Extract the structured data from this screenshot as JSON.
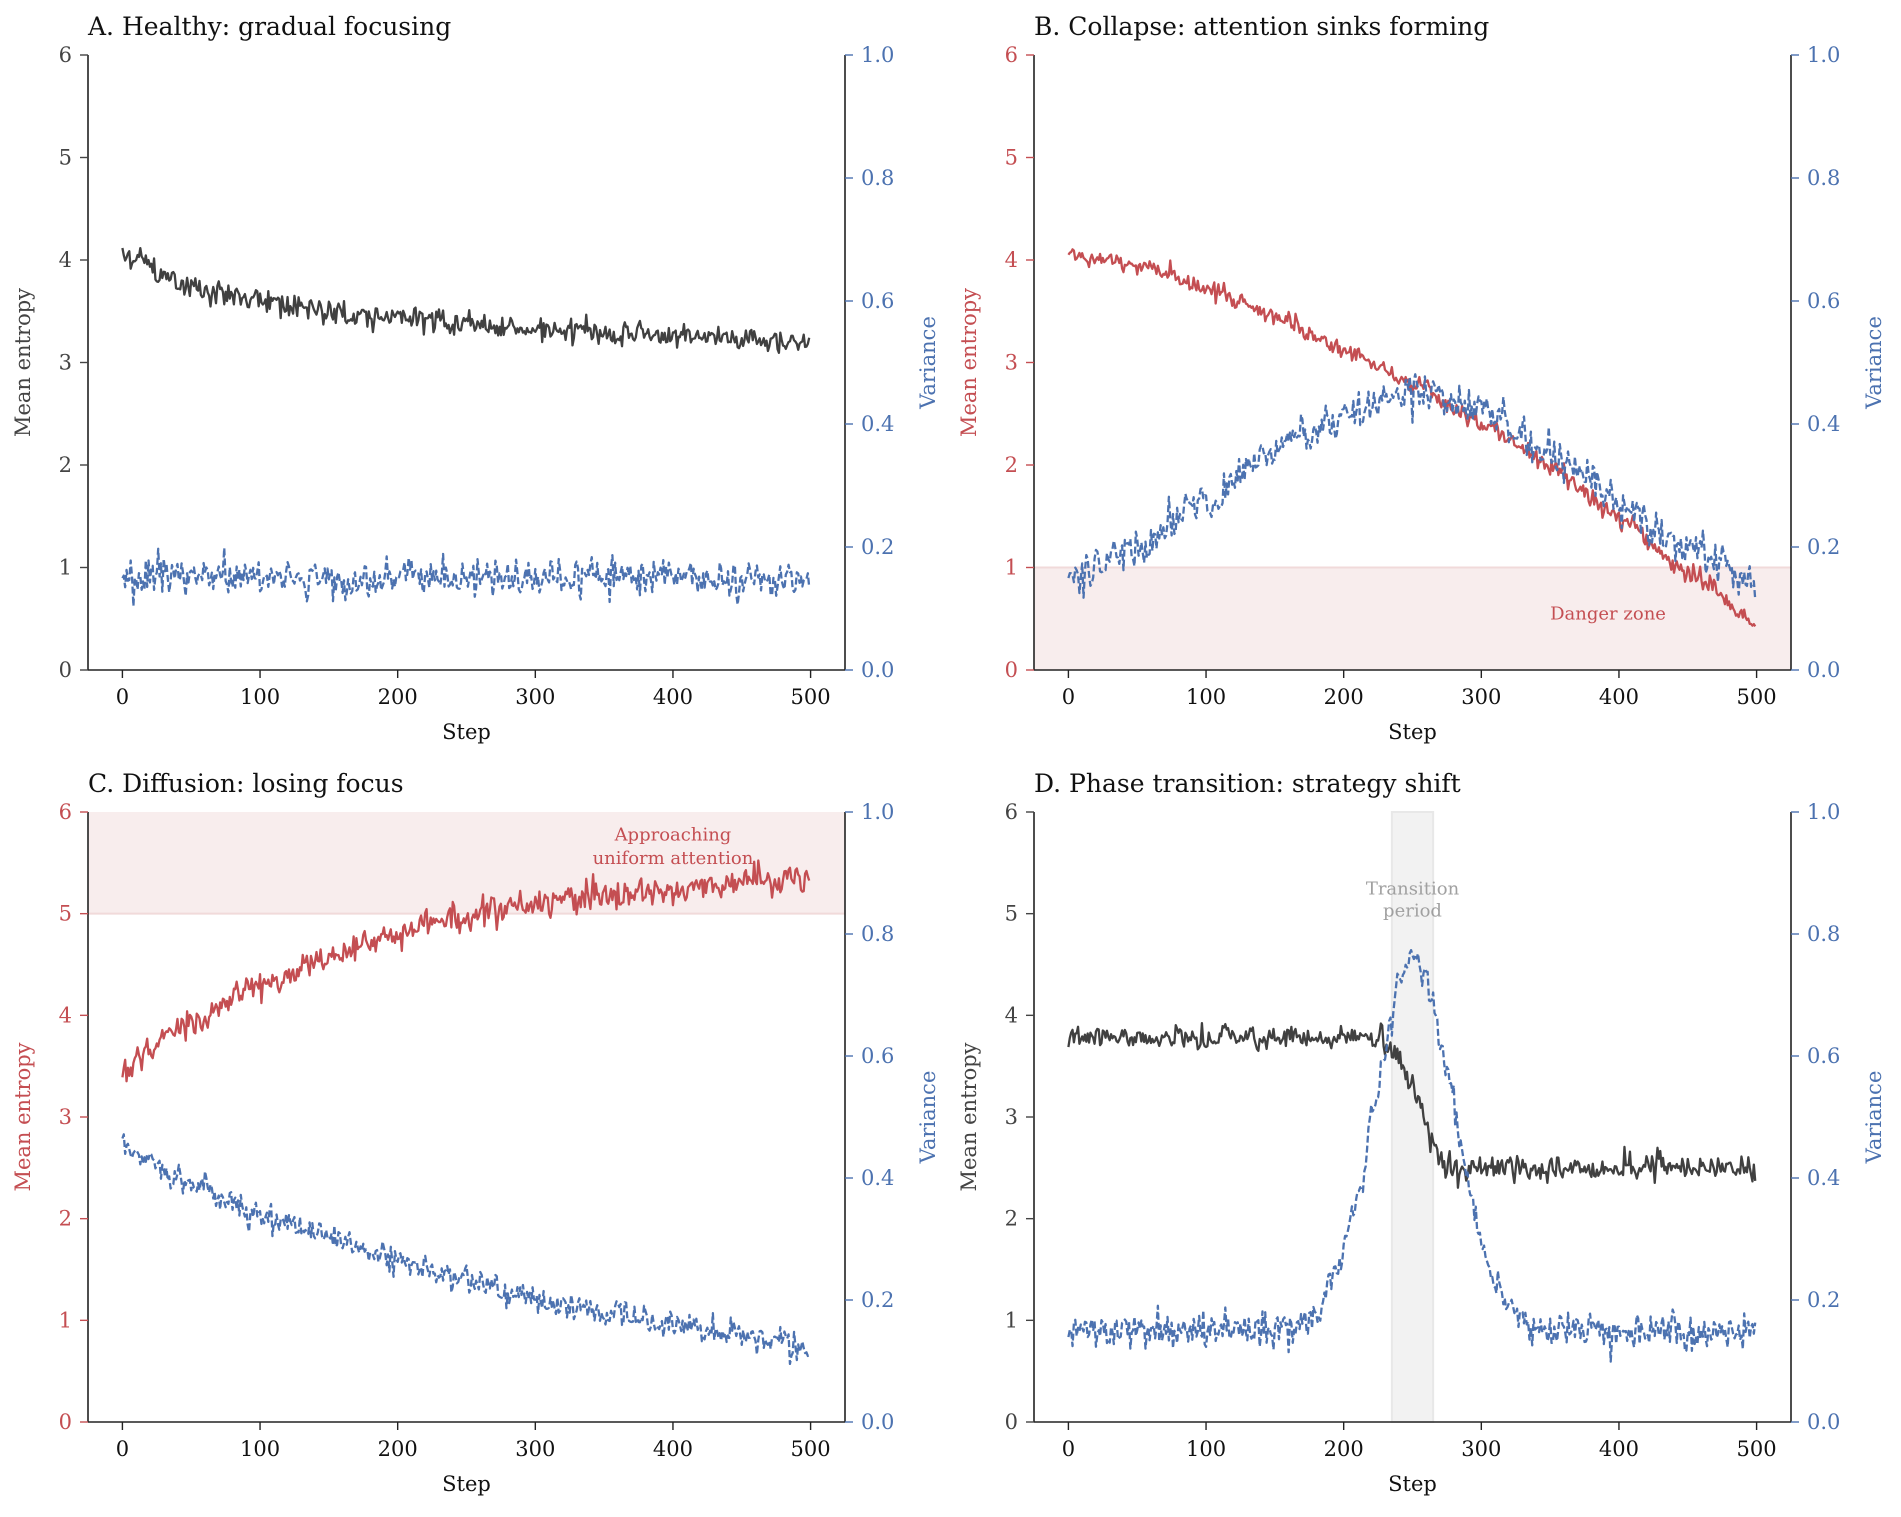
{
  "colors": {
    "red": "#c44e52",
    "blue": "#4c72b0",
    "dark": "#404040",
    "axis": "#222222",
    "danger_fill": "#f8eded",
    "transition_fill": "#f2f2f2",
    "transition_text": "#a0a0a0"
  },
  "chart_data": [
    {
      "id": "A",
      "type": "line",
      "title": "A. Healthy: gradual focusing",
      "xlabel": "Step",
      "ylabel_left": "Mean entropy",
      "ylabel_right": "Variance",
      "left_axis_color": "dark",
      "xlim": [
        -25,
        525
      ],
      "ylim_left": [
        0,
        6
      ],
      "ylim_right": [
        0.0,
        1.0
      ],
      "xticks": [
        "0",
        "100",
        "200",
        "300",
        "400",
        "500"
      ],
      "xtick_values": [
        0,
        100,
        200,
        300,
        400,
        500
      ],
      "yticks_left": [
        "0",
        "1",
        "2",
        "3",
        "4",
        "5",
        "6"
      ],
      "yticks_left_values": [
        0,
        1,
        2,
        3,
        4,
        5,
        6
      ],
      "yticks_right": [
        "0.0",
        "0.2",
        "0.4",
        "0.6",
        "0.8",
        "1.0"
      ],
      "yticks_right_values": [
        0,
        0.2,
        0.4,
        0.6,
        0.8,
        1.0
      ],
      "series": [
        {
          "name": "Mean entropy",
          "axis": "left",
          "color": "dark",
          "style": "solid",
          "x_range": [
            0,
            499
          ],
          "trend": [
            [
              0,
              4.05
            ],
            [
              50,
              3.75
            ],
            [
              100,
              3.6
            ],
            [
              200,
              3.42
            ],
            [
              300,
              3.33
            ],
            [
              400,
              3.27
            ],
            [
              499,
              3.2
            ]
          ],
          "noise": 0.07,
          "seed": 11
        },
        {
          "name": "Variance",
          "axis": "right",
          "color": "blue",
          "style": "dashed",
          "x_range": [
            0,
            499
          ],
          "trend": [
            [
              0,
              0.15
            ],
            [
              499,
              0.15
            ]
          ],
          "noise": 0.017,
          "seed": 12
        }
      ],
      "bands": [],
      "annotations": []
    },
    {
      "id": "B",
      "type": "line",
      "title": "B. Collapse: attention sinks forming",
      "xlabel": "Step",
      "ylabel_left": "Mean entropy",
      "ylabel_right": "Variance",
      "left_axis_color": "red",
      "xlim": [
        -25,
        525
      ],
      "ylim_left": [
        0,
        6
      ],
      "ylim_right": [
        0.0,
        1.0
      ],
      "xticks": [
        "0",
        "100",
        "200",
        "300",
        "400",
        "500"
      ],
      "xtick_values": [
        0,
        100,
        200,
        300,
        400,
        500
      ],
      "yticks_left": [
        "0",
        "1",
        "2",
        "3",
        "4",
        "5",
        "6"
      ],
      "yticks_left_values": [
        0,
        1,
        2,
        3,
        4,
        5,
        6
      ],
      "yticks_right": [
        "0.0",
        "0.2",
        "0.4",
        "0.6",
        "0.8",
        "1.0"
      ],
      "yticks_right_values": [
        0,
        0.2,
        0.4,
        0.6,
        0.8,
        1.0
      ],
      "series": [
        {
          "name": "Mean entropy",
          "axis": "left",
          "color": "red",
          "style": "solid",
          "x_range": [
            0,
            499
          ],
          "trend": [
            [
              0,
              4.05
            ],
            [
              50,
              3.95
            ],
            [
              100,
              3.72
            ],
            [
              150,
              3.45
            ],
            [
              200,
              3.12
            ],
            [
              250,
              2.8
            ],
            [
              300,
              2.4
            ],
            [
              350,
              2.0
            ],
            [
              400,
              1.5
            ],
            [
              450,
              0.95
            ],
            [
              499,
              0.45
            ]
          ],
          "noise": 0.05,
          "seed": 21
        },
        {
          "name": "Variance",
          "axis": "right",
          "color": "blue",
          "style": "dashed",
          "x_range": [
            0,
            499
          ],
          "trend": [
            [
              0,
              0.15
            ],
            [
              50,
              0.2
            ],
            [
              100,
              0.27
            ],
            [
              150,
              0.36
            ],
            [
              200,
              0.42
            ],
            [
              250,
              0.45
            ],
            [
              300,
              0.42
            ],
            [
              350,
              0.35
            ],
            [
              400,
              0.27
            ],
            [
              450,
              0.2
            ],
            [
              499,
              0.15
            ]
          ],
          "noise": 0.018,
          "seed": 22
        }
      ],
      "bands": [
        {
          "orientation": "horizontal",
          "axis": "left",
          "from": 0,
          "to": 1,
          "color": "danger_fill"
        }
      ],
      "annotations": [
        {
          "text": "Danger zone",
          "x": 350,
          "y": 0.55,
          "anchor": "start",
          "color": "red"
        }
      ]
    },
    {
      "id": "C",
      "type": "line",
      "title": "C. Diffusion: losing focus",
      "xlabel": "Step",
      "ylabel_left": "Mean entropy",
      "ylabel_right": "Variance",
      "left_axis_color": "red",
      "xlim": [
        -25,
        525
      ],
      "ylim_left": [
        0,
        6
      ],
      "ylim_right": [
        0.0,
        1.0
      ],
      "xticks": [
        "0",
        "100",
        "200",
        "300",
        "400",
        "500"
      ],
      "xtick_values": [
        0,
        100,
        200,
        300,
        400,
        500
      ],
      "yticks_left": [
        "0",
        "1",
        "2",
        "3",
        "4",
        "5",
        "6"
      ],
      "yticks_left_values": [
        0,
        1,
        2,
        3,
        4,
        5,
        6
      ],
      "yticks_right": [
        "0.0",
        "0.2",
        "0.4",
        "0.6",
        "0.8",
        "1.0"
      ],
      "yticks_right_values": [
        0,
        0.2,
        0.4,
        0.6,
        0.8,
        1.0
      ],
      "series": [
        {
          "name": "Mean entropy",
          "axis": "left",
          "color": "red",
          "style": "solid",
          "x_range": [
            0,
            499
          ],
          "trend": [
            [
              0,
              3.45
            ],
            [
              50,
              3.95
            ],
            [
              100,
              4.3
            ],
            [
              150,
              4.58
            ],
            [
              200,
              4.8
            ],
            [
              250,
              4.97
            ],
            [
              300,
              5.1
            ],
            [
              350,
              5.18
            ],
            [
              400,
              5.25
            ],
            [
              450,
              5.3
            ],
            [
              499,
              5.35
            ]
          ],
          "noise": 0.08,
          "seed": 31
        },
        {
          "name": "Variance",
          "axis": "right",
          "color": "blue",
          "style": "dashed",
          "x_range": [
            0,
            499
          ],
          "trend": [
            [
              0,
              0.45
            ],
            [
              50,
              0.39
            ],
            [
              100,
              0.34
            ],
            [
              150,
              0.3
            ],
            [
              200,
              0.27
            ],
            [
              250,
              0.23
            ],
            [
              300,
              0.2
            ],
            [
              350,
              0.18
            ],
            [
              400,
              0.16
            ],
            [
              450,
              0.14
            ],
            [
              499,
              0.125
            ]
          ],
          "noise": 0.013,
          "seed": 32
        }
      ],
      "bands": [
        {
          "orientation": "horizontal",
          "axis": "left",
          "from": 5,
          "to": 6,
          "color": "danger_fill"
        }
      ],
      "annotations": [
        {
          "text": "Approaching",
          "x": 400,
          "y": 5.78,
          "anchor": "middle",
          "color": "red"
        },
        {
          "text": "uniform attention",
          "x": 400,
          "y": 5.55,
          "anchor": "middle",
          "color": "red"
        }
      ]
    },
    {
      "id": "D",
      "type": "line",
      "title": "D. Phase transition: strategy shift",
      "xlabel": "Step",
      "ylabel_left": "Mean entropy",
      "ylabel_right": "Variance",
      "left_axis_color": "dark",
      "xlim": [
        -25,
        525
      ],
      "ylim_left": [
        0,
        6
      ],
      "ylim_right": [
        0.0,
        1.0
      ],
      "xticks": [
        "0",
        "100",
        "200",
        "300",
        "400",
        "500"
      ],
      "xtick_values": [
        0,
        100,
        200,
        300,
        400,
        500
      ],
      "yticks_left": [
        "0",
        "1",
        "2",
        "3",
        "4",
        "5",
        "6"
      ],
      "yticks_left_values": [
        0,
        1,
        2,
        3,
        4,
        5,
        6
      ],
      "yticks_right": [
        "0.0",
        "0.2",
        "0.4",
        "0.6",
        "0.8",
        "1.0"
      ],
      "yticks_right_values": [
        0,
        0.2,
        0.4,
        0.6,
        0.8,
        1.0
      ],
      "series": [
        {
          "name": "Mean entropy",
          "axis": "left",
          "color": "dark",
          "style": "solid",
          "x_range": [
            0,
            499
          ],
          "trend": [
            [
              0,
              3.78
            ],
            [
              225,
              3.78
            ],
            [
              235,
              3.68
            ],
            [
              250,
              3.3
            ],
            [
              265,
              2.75
            ],
            [
              275,
              2.5
            ],
            [
              499,
              2.5
            ]
          ],
          "noise": 0.07,
          "seed": 41
        },
        {
          "name": "Variance",
          "axis": "right",
          "color": "blue",
          "style": "dashed",
          "x_range": [
            0,
            499
          ],
          "trend": [
            [
              0,
              0.15
            ],
            [
              160,
              0.15
            ],
            [
              180,
              0.18
            ],
            [
              195,
              0.24
            ],
            [
              210,
              0.36
            ],
            [
              225,
              0.55
            ],
            [
              240,
              0.72
            ],
            [
              250,
              0.76
            ],
            [
              260,
              0.73
            ],
            [
              275,
              0.58
            ],
            [
              290,
              0.4
            ],
            [
              305,
              0.25
            ],
            [
              320,
              0.18
            ],
            [
              340,
              0.15
            ],
            [
              499,
              0.15
            ]
          ],
          "noise": 0.017,
          "seed": 42
        }
      ],
      "bands": [
        {
          "orientation": "vertical",
          "from": 235,
          "to": 265,
          "color": "transition_fill"
        }
      ],
      "annotations": [
        {
          "text": "Transition",
          "x": 250,
          "y": 5.25,
          "anchor": "middle",
          "color": "transition_text"
        },
        {
          "text": "period",
          "x": 250,
          "y": 5.03,
          "anchor": "middle",
          "color": "transition_text"
        }
      ]
    }
  ]
}
